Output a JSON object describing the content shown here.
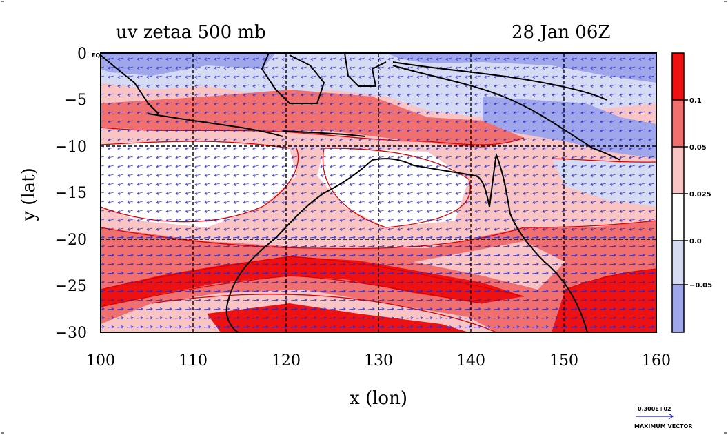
{
  "title_left": "uv zetaa 500 mb",
  "title_right": "28 Jan 06Z",
  "xlabel": "x (lon)",
  "ylabel": "y (lat)",
  "x_ticks": [
    "100",
    "110",
    "120",
    "130",
    "140",
    "150",
    "160"
  ],
  "y_ticks": [
    "0",
    "−5",
    "−10",
    "−15",
    "−20",
    "−25",
    "−30"
  ],
  "eq_label": "EQ",
  "colorbar": {
    "labels": [
      "0.1",
      "0.05",
      "0.025",
      "0.0",
      "−0.05"
    ],
    "colors": [
      "#ee1111",
      "#f07070",
      "#f8c4c4",
      "#ffffff",
      "#d6dbf4",
      "#a0a6ea"
    ]
  },
  "vector_key": {
    "value": "0.300E+02",
    "label": "MAXIMUM VECTOR"
  },
  "colors": {
    "strong_red": "#ee1111",
    "mid_red": "#f07070",
    "light_red": "#f8c4c4",
    "light_blue": "#d6dbf4",
    "blue": "#a0a6ea",
    "contour": "#dd0000",
    "vector": "#2222cc",
    "coast": "#000000"
  }
}
